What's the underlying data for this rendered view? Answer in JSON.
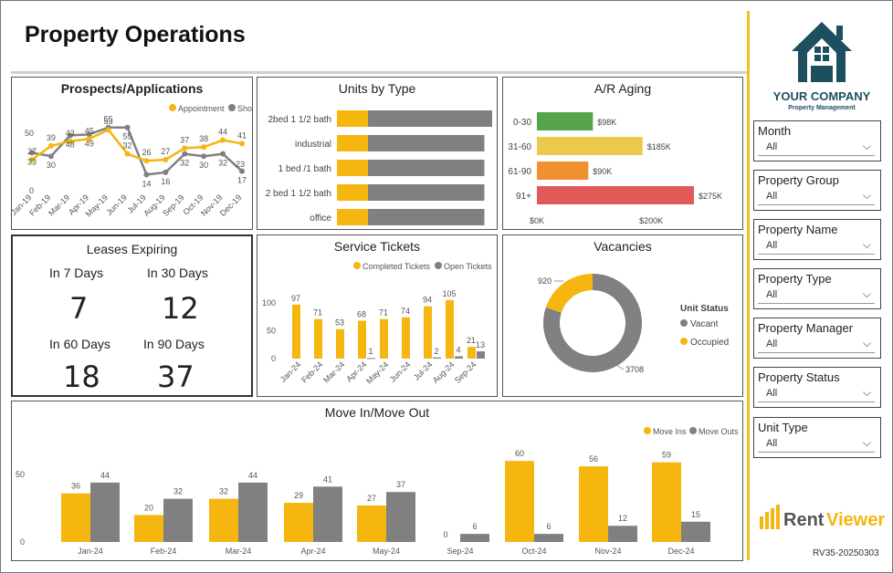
{
  "header": {
    "title": "Property Operations"
  },
  "prospects": {
    "title": "Prospects/Applications",
    "legend": [
      {
        "label": "Appointment",
        "color": "#f4b60f"
      },
      {
        "label": "Show",
        "color": "#808080"
      }
    ],
    "months": [
      "Jan-19",
      "Feb-19",
      "Mar-19",
      "Apr-19",
      "May-19",
      "Jun-19",
      "Jul-19",
      "Aug-19",
      "Sep-19",
      "Oct-19",
      "Nov-19",
      "Dec-19"
    ],
    "appointment": [
      27,
      39,
      43,
      45,
      53,
      32,
      26,
      27,
      37,
      38,
      44,
      41
    ],
    "show": [
      33,
      30,
      48,
      49,
      55,
      55,
      14,
      16,
      32,
      30,
      32,
      17
    ],
    "end_label": "23",
    "yticks": [
      "50",
      "0"
    ]
  },
  "units": {
    "title": "Units by Type",
    "rows": [
      {
        "label": "2bed 1 1/2 bath",
        "yellow": 0.2,
        "gray": 0.8
      },
      {
        "label": "industrial",
        "yellow": 0.2,
        "gray": 0.75
      },
      {
        "label": "1 bed /1 bath",
        "yellow": 0.2,
        "gray": 0.75
      },
      {
        "label": "2 bed  1 1/2 bath",
        "yellow": 0.2,
        "gray": 0.75
      },
      {
        "label": "office",
        "yellow": 0.2,
        "gray": 0.75
      }
    ]
  },
  "ar": {
    "title": "A/R Aging",
    "rows": [
      {
        "label": "0-30",
        "value": 98,
        "text": "$98K",
        "color": "#55a34a"
      },
      {
        "label": "31-60",
        "value": 185,
        "text": "$185K",
        "color": "#ecc94b"
      },
      {
        "label": "61-90",
        "value": 90,
        "text": "$90K",
        "color": "#f0902f"
      },
      {
        "label": "91+",
        "value": 275,
        "text": "$275K",
        "color": "#e05a5a"
      }
    ],
    "xticks": [
      "$0K",
      "$200K"
    ]
  },
  "leases": {
    "title": "Leases Expiring",
    "items": [
      {
        "label": "In 7 Days",
        "value": "7"
      },
      {
        "label": "In 30 Days",
        "value": "12"
      },
      {
        "label": "In 60 Days",
        "value": "18"
      },
      {
        "label": "In 90 Days",
        "value": "37"
      }
    ]
  },
  "tickets": {
    "title": "Service Tickets",
    "legend": [
      {
        "label": "Completed Tickets",
        "color": "#f4b60f"
      },
      {
        "label": "Open Tickets",
        "color": "#808080"
      }
    ],
    "months": [
      "Jan-24",
      "Feb-24",
      "Mar-24",
      "Apr-24",
      "May-24",
      "Jun-24",
      "Jul-24",
      "Aug-24",
      "Sep-24"
    ],
    "completed": [
      97,
      71,
      53,
      68,
      71,
      74,
      94,
      105,
      21
    ],
    "open": [
      null,
      null,
      null,
      1,
      null,
      null,
      2,
      4,
      13
    ],
    "yticks": [
      "100",
      "50",
      "0"
    ]
  },
  "vacancies": {
    "title": "Vacancies",
    "legend_title": "Unit Status",
    "legend": [
      {
        "label": "Vacant",
        "color": "#808080"
      },
      {
        "label": "Occupied",
        "color": "#f4b60f"
      }
    ],
    "vacant": 3708,
    "occupied": 920,
    "vacant_text": "3708",
    "occupied_text": "920"
  },
  "moves": {
    "title": "Move In/Move Out",
    "legend": [
      {
        "label": "Move Ins",
        "color": "#f4b60f"
      },
      {
        "label": "Move Outs",
        "color": "#808080"
      }
    ],
    "months": [
      "Jan-24",
      "Feb-24",
      "Mar-24",
      "Apr-24",
      "May-24",
      "Sep-24",
      "Oct-24",
      "Nov-24",
      "Dec-24"
    ],
    "ins": [
      36,
      20,
      32,
      29,
      27,
      0,
      60,
      56,
      59
    ],
    "outs": [
      44,
      32,
      44,
      41,
      37,
      6,
      6,
      12,
      15
    ],
    "yticks": [
      "50",
      "0"
    ]
  },
  "logo": {
    "name": "YOUR COMPANY",
    "tagline": "Property Management"
  },
  "filters": [
    {
      "label": "Month",
      "value": "All"
    },
    {
      "label": "Property Group",
      "value": "All"
    },
    {
      "label": "Property Name",
      "value": "All"
    },
    {
      "label": "Property Type",
      "value": "All"
    },
    {
      "label": "Property Manager",
      "value": "All"
    },
    {
      "label": "Property Status",
      "value": "All"
    },
    {
      "label": "Unit Type",
      "value": "All"
    }
  ],
  "brand": {
    "rent": "Rent",
    "viewer": "Viewer"
  },
  "version": "RV35-20250303",
  "colors": {
    "yellow": "#f4b60f",
    "gray": "#808080",
    "navy": "#1d4f61",
    "accent": "#f3c01a"
  }
}
